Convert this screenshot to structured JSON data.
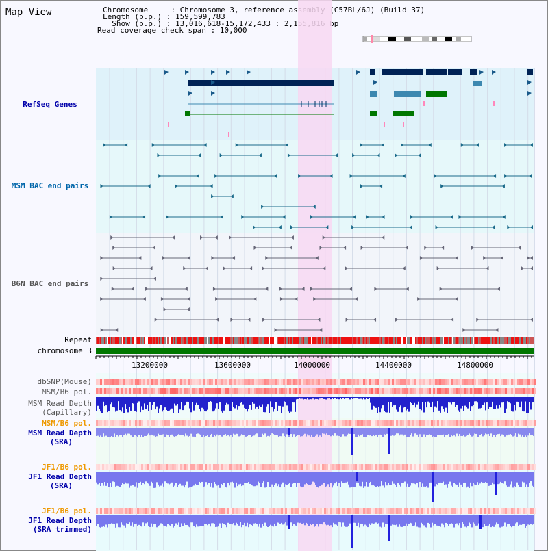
{
  "title": "Map View",
  "info": {
    "chromosome_line": "Chromosome     : Chromosome 3, reference assembly (C57BL/6J) (Build 37)",
    "length_line": "Length (b.p.) : 159,599,783",
    "show_line": "  Show (b.p.) : 13,016,618-15,172,433 : 2,155,816 bp",
    "coverage_line": "Read coverage check span : 10,000"
  },
  "tracks": {
    "refseq": "RefSeq Genes",
    "msm_bac": "MSM BAC end pairs",
    "b6n_bac": "B6N BAC end pairs",
    "repeat": "Repeat",
    "chromosome": "chromosome 3",
    "dbsnp": "dbSNP(Mouse)",
    "msm_b6_pol_1": "MSM/B6 pol.",
    "msm_depth_cap_1": "MSM Read Depth",
    "msm_depth_cap_2": "(Capillary)",
    "msm_b6_pol_2": "MSM/B6 pol.",
    "msm_depth_sra_1": "MSM Read Depth",
    "msm_depth_sra_2": "(SRA)",
    "jf1_b6_pol_1": "JF1/B6 pol.",
    "jf1_depth_sra_1": "JF1 Read Depth",
    "jf1_depth_sra_2": "(SRA)",
    "jf1_b6_pol_2": "JF1/B6 pol.",
    "jf1_depth_trim_1": "JF1 Read Depth",
    "jf1_depth_trim_2": "(SRA trimmed)"
  },
  "axis": {
    "ticks": [
      "13200000",
      "13600000",
      "14000000",
      "14400000",
      "14800000"
    ]
  },
  "colors": {
    "refseq_label": "#0000aa",
    "msm_label": "#0066aa",
    "b6n_label": "#555555",
    "orange_label": "#ee9900",
    "blue_label": "#0000aa",
    "highlight": "#f7d6f0",
    "chromosome_bar": "#007700"
  }
}
